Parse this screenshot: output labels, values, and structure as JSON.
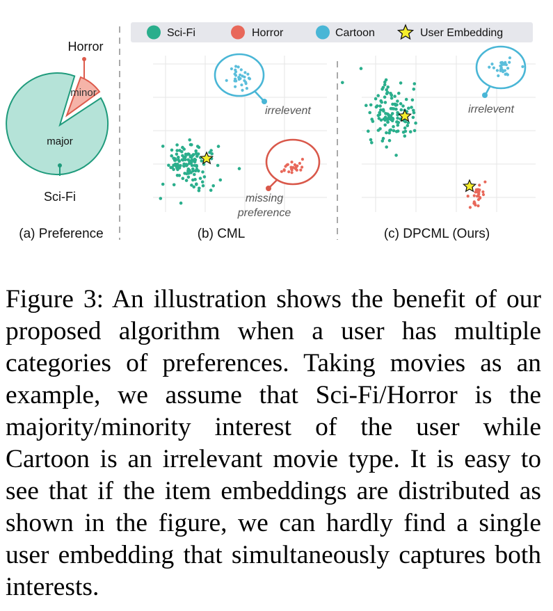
{
  "legend": {
    "items": [
      {
        "label": "Sci-Fi",
        "color": "#2aae8c",
        "shape": "dot"
      },
      {
        "label": "Horror",
        "color": "#e8685a",
        "shape": "dot"
      },
      {
        "label": "Cartoon",
        "color": "#49b6d6",
        "shape": "dot"
      },
      {
        "label": "User Embedding",
        "color": "#f6ee2b",
        "shape": "star"
      }
    ]
  },
  "panel_a": {
    "caption": "(a) Preference",
    "label_horror": "Horror",
    "label_scifi": "Sci-Fi",
    "label_minor": "minor",
    "label_major": "major",
    "colors": {
      "major_fill": "#b5e3d8",
      "major_stroke": "#1f9b7c",
      "minor_fill": "#f5b3a8",
      "minor_stroke": "#dd5a4b"
    }
  },
  "panel_b": {
    "caption": "(b) CML",
    "label_irrelevent": "irrelevent",
    "label_missing_1": "missing",
    "label_missing_2": "preference"
  },
  "panel_c": {
    "caption": "(c) DPCML (Ours)",
    "label_irrelevent": "irrelevent"
  },
  "caption": {
    "text": "Figure 3:  An illustration shows the benefit of our proposed algorithm when a user has multiple categories of preferences.  Taking movies as an example, we assume that Sci-Fi/Horror is the majority/minority interest of the user while Cartoon is an irrelevant movie type. It is easy to see that if the item embed­dings are distributed as shown in the figure, we can hardly find a single user embedding that simultaneously captures both interests."
  }
}
